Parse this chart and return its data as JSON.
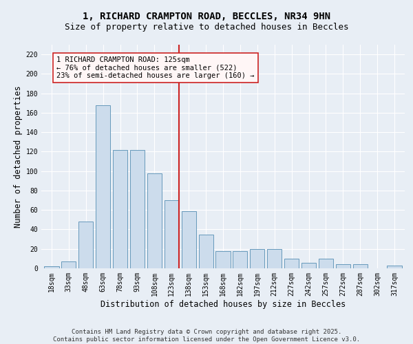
{
  "title_line1": "1, RICHARD CRAMPTON ROAD, BECCLES, NR34 9HN",
  "title_line2": "Size of property relative to detached houses in Beccles",
  "xlabel": "Distribution of detached houses by size in Beccles",
  "ylabel": "Number of detached properties",
  "bar_color": "#ccdcec",
  "bar_edge_color": "#6699bb",
  "background_color": "#e8eef5",
  "grid_color": "#ffffff",
  "categories": [
    "18sqm",
    "33sqm",
    "48sqm",
    "63sqm",
    "78sqm",
    "93sqm",
    "108sqm",
    "123sqm",
    "138sqm",
    "153sqm",
    "168sqm",
    "182sqm",
    "197sqm",
    "212sqm",
    "227sqm",
    "242sqm",
    "257sqm",
    "272sqm",
    "287sqm",
    "302sqm",
    "317sqm"
  ],
  "values": [
    2,
    7,
    48,
    168,
    122,
    122,
    98,
    70,
    59,
    35,
    18,
    18,
    20,
    20,
    10,
    6,
    10,
    4,
    4,
    0,
    3
  ],
  "property_line_color": "#cc2222",
  "annotation_text": "1 RICHARD CRAMPTON ROAD: 125sqm\n← 76% of detached houses are smaller (522)\n23% of semi-detached houses are larger (160) →",
  "annotation_edge_color": "#cc2222",
  "ylim": [
    0,
    230
  ],
  "yticks": [
    0,
    20,
    40,
    60,
    80,
    100,
    120,
    140,
    160,
    180,
    200,
    220
  ],
  "footer_text": "Contains HM Land Registry data © Crown copyright and database right 2025.\nContains public sector information licensed under the Open Government Licence v3.0.",
  "title_fontsize": 10,
  "subtitle_fontsize": 9,
  "axis_label_fontsize": 8.5,
  "tick_fontsize": 7,
  "annotation_fontsize": 7.5,
  "footer_fontsize": 6.5
}
